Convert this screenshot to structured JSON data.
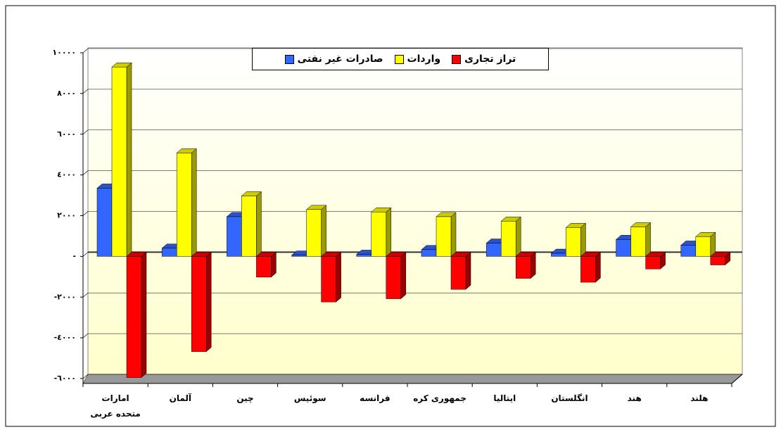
{
  "chart_data": {
    "type": "bar3d",
    "categories": [
      "امارات متحده عربی",
      "آلمان",
      "چین",
      "سوئیس",
      "فرانسه",
      "جمهوری کره",
      "ایتالیا",
      "انگلستان",
      "هند",
      "هلند"
    ],
    "series": [
      {
        "name": "صادرات غیر نفتی",
        "color": "#3366ff",
        "values": [
          3350,
          400,
          1950,
          60,
          100,
          330,
          650,
          150,
          830,
          550
        ]
      },
      {
        "name": "واردات",
        "color": "#ffff00",
        "values": [
          9300,
          5080,
          2970,
          2300,
          2180,
          1950,
          1730,
          1420,
          1450,
          970
        ]
      },
      {
        "name": "تراز تجاری",
        "color": "#ff0000",
        "values": [
          -5950,
          -4680,
          -1020,
          -2240,
          -2080,
          -1620,
          -1080,
          -1270,
          -620,
          -420
        ]
      }
    ],
    "ylim": [
      -6000,
      10000
    ],
    "yticks": [
      {
        "value": -6000,
        "label": "-٦٠٠٠"
      },
      {
        "value": -4000,
        "label": "-٤٠٠٠"
      },
      {
        "value": -2000,
        "label": "-٢٠٠٠"
      },
      {
        "value": 0,
        "label": "-"
      },
      {
        "value": 2000,
        "label": "٢٠٠٠"
      },
      {
        "value": 4000,
        "label": "٤٠٠٠"
      },
      {
        "value": 6000,
        "label": "٦٠٠٠"
      },
      {
        "value": 8000,
        "label": "٨٠٠٠"
      },
      {
        "value": 10000,
        "label": "١٠٠٠٠"
      }
    ],
    "grid": true
  }
}
